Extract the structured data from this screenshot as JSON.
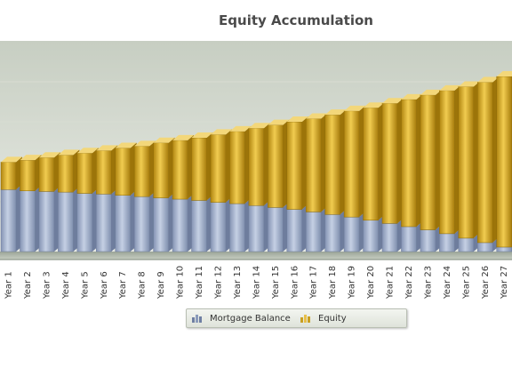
{
  "chart_data": {
    "type": "bar",
    "stacked": true,
    "title": "Equity Accumulation",
    "xlabel": "",
    "ylabel": "",
    "categories": [
      "Year 1",
      "Year 2",
      "Year 3",
      "Year 4",
      "Year 5",
      "Year 6",
      "Year 7",
      "Year 8",
      "Year 9",
      "Year 10",
      "Year 11",
      "Year 12",
      "Year 13",
      "Year 14",
      "Year 15",
      "Year 16",
      "Year 17",
      "Year 18",
      "Year 19",
      "Year 20",
      "Year 21",
      "Year 22",
      "Year 23",
      "Year 24",
      "Year 25",
      "Year 26",
      "Year 27"
    ],
    "series": [
      {
        "name": "Mortgage Balance",
        "color": "#8b9bbb",
        "values": [
          97,
          95,
          94,
          93,
          91,
          90,
          88,
          86,
          84,
          82,
          80,
          77,
          75,
          72,
          69,
          66,
          62,
          58,
          54,
          49,
          44,
          39,
          34,
          28,
          21,
          14,
          7
        ]
      },
      {
        "name": "Equity",
        "color": "#c9a024",
        "values": [
          43,
          48,
          53,
          58,
          63,
          68,
          74,
          79,
          86,
          92,
          98,
          106,
          113,
          121,
          129,
          137,
          146,
          156,
          166,
          176,
          188,
          199,
          211,
          224,
          237,
          251,
          267
        ]
      }
    ],
    "grid": true,
    "legend_position": "bottom"
  }
}
